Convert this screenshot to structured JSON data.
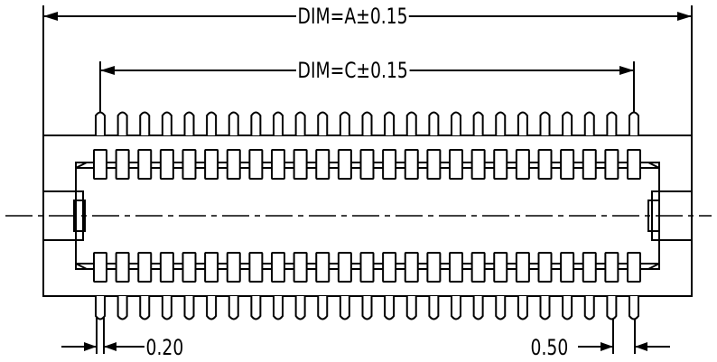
{
  "dimensions": {
    "overall_length": "DIM=A±0.15",
    "pin_span": "DIM=C±0.15",
    "pin_width": "0.20",
    "pin_pitch": "0.50"
  },
  "pin_count_per_side": 25,
  "line_color": "#000000",
  "background_color": "#ffffff"
}
